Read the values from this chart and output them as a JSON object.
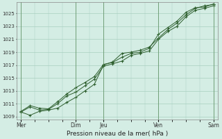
{
  "background_color": "#d4ede4",
  "grid_color": "#a8cfc0",
  "line_color": "#2d5e2d",
  "marker_color": "#2d5e2d",
  "xlabel": "Pression niveau de la mer( hPa )",
  "ylim": [
    1008.5,
    1026.8
  ],
  "yticks": [
    1009,
    1011,
    1013,
    1015,
    1017,
    1019,
    1021,
    1023,
    1025
  ],
  "xtick_labels": [
    "Mer",
    "Dim",
    "Jeu",
    "Ven",
    "Sam"
  ],
  "xtick_positions": [
    0,
    24,
    36,
    60,
    84
  ],
  "vlines": [
    0,
    24,
    36,
    60,
    84
  ],
  "series1": [
    [
      0,
      1009.7
    ],
    [
      4,
      1010.5
    ],
    [
      8,
      1010.0
    ],
    [
      12,
      1010.1
    ],
    [
      16,
      1011.0
    ],
    [
      20,
      1012.2
    ],
    [
      24,
      1012.8
    ],
    [
      28,
      1013.8
    ],
    [
      32,
      1014.8
    ],
    [
      36,
      1016.8
    ],
    [
      40,
      1017.2
    ],
    [
      44,
      1017.6
    ],
    [
      48,
      1018.5
    ],
    [
      52,
      1018.8
    ],
    [
      56,
      1019.2
    ],
    [
      60,
      1021.0
    ],
    [
      64,
      1022.2
    ],
    [
      68,
      1023.0
    ],
    [
      72,
      1024.5
    ],
    [
      76,
      1025.5
    ],
    [
      80,
      1025.8
    ],
    [
      84,
      1026.2
    ]
  ],
  "series2": [
    [
      0,
      1009.7
    ],
    [
      4,
      1009.2
    ],
    [
      8,
      1009.8
    ],
    [
      12,
      1010.0
    ],
    [
      16,
      1010.3
    ],
    [
      20,
      1011.2
    ],
    [
      24,
      1012.0
    ],
    [
      28,
      1013.0
    ],
    [
      32,
      1014.0
    ],
    [
      36,
      1017.0
    ],
    [
      40,
      1017.5
    ],
    [
      44,
      1018.8
    ],
    [
      48,
      1019.0
    ],
    [
      52,
      1019.3
    ],
    [
      56,
      1019.8
    ],
    [
      60,
      1021.2
    ],
    [
      64,
      1022.5
    ],
    [
      68,
      1023.5
    ],
    [
      72,
      1024.8
    ],
    [
      76,
      1025.8
    ],
    [
      80,
      1026.2
    ],
    [
      84,
      1026.4
    ]
  ],
  "series3": [
    [
      0,
      1009.8
    ],
    [
      4,
      1010.7
    ],
    [
      8,
      1010.3
    ],
    [
      12,
      1010.2
    ],
    [
      16,
      1011.3
    ],
    [
      20,
      1012.5
    ],
    [
      24,
      1013.5
    ],
    [
      28,
      1014.3
    ],
    [
      32,
      1015.2
    ],
    [
      36,
      1017.1
    ],
    [
      40,
      1017.4
    ],
    [
      44,
      1018.2
    ],
    [
      48,
      1018.8
    ],
    [
      52,
      1019.0
    ],
    [
      56,
      1019.6
    ],
    [
      60,
      1021.8
    ],
    [
      64,
      1022.8
    ],
    [
      68,
      1023.8
    ],
    [
      72,
      1025.2
    ],
    [
      76,
      1025.9
    ],
    [
      80,
      1026.0
    ],
    [
      84,
      1026.5
    ]
  ]
}
